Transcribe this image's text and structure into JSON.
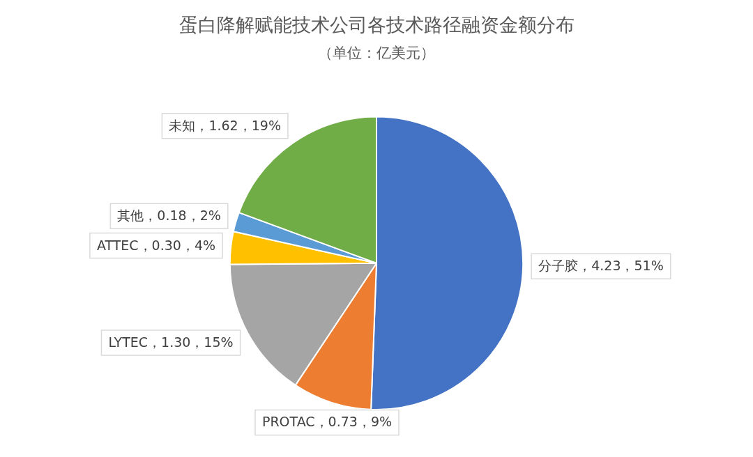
{
  "chart_data": {
    "type": "pie",
    "title": "蛋白降解赋能技术公司各技术路径融资金额分布",
    "subtitle": "（单位：亿美元）",
    "categories": [
      "分子胶",
      "PROTAC",
      "LYTEC",
      "ATTEC",
      "其他",
      "未知"
    ],
    "values": [
      4.23,
      0.73,
      1.3,
      0.3,
      0.18,
      1.62
    ],
    "colors": [
      "#4472c4",
      "#ed7d31",
      "#a5a5a5",
      "#ffc000",
      "#5b9bd5",
      "#70ad47"
    ],
    "value_labels": [
      "，4.23，51%",
      "，0.73，9%",
      "，1.30，15%",
      "，0.30，4%",
      "，0.18，2%",
      "，1.62，19%"
    ],
    "legend": false
  }
}
